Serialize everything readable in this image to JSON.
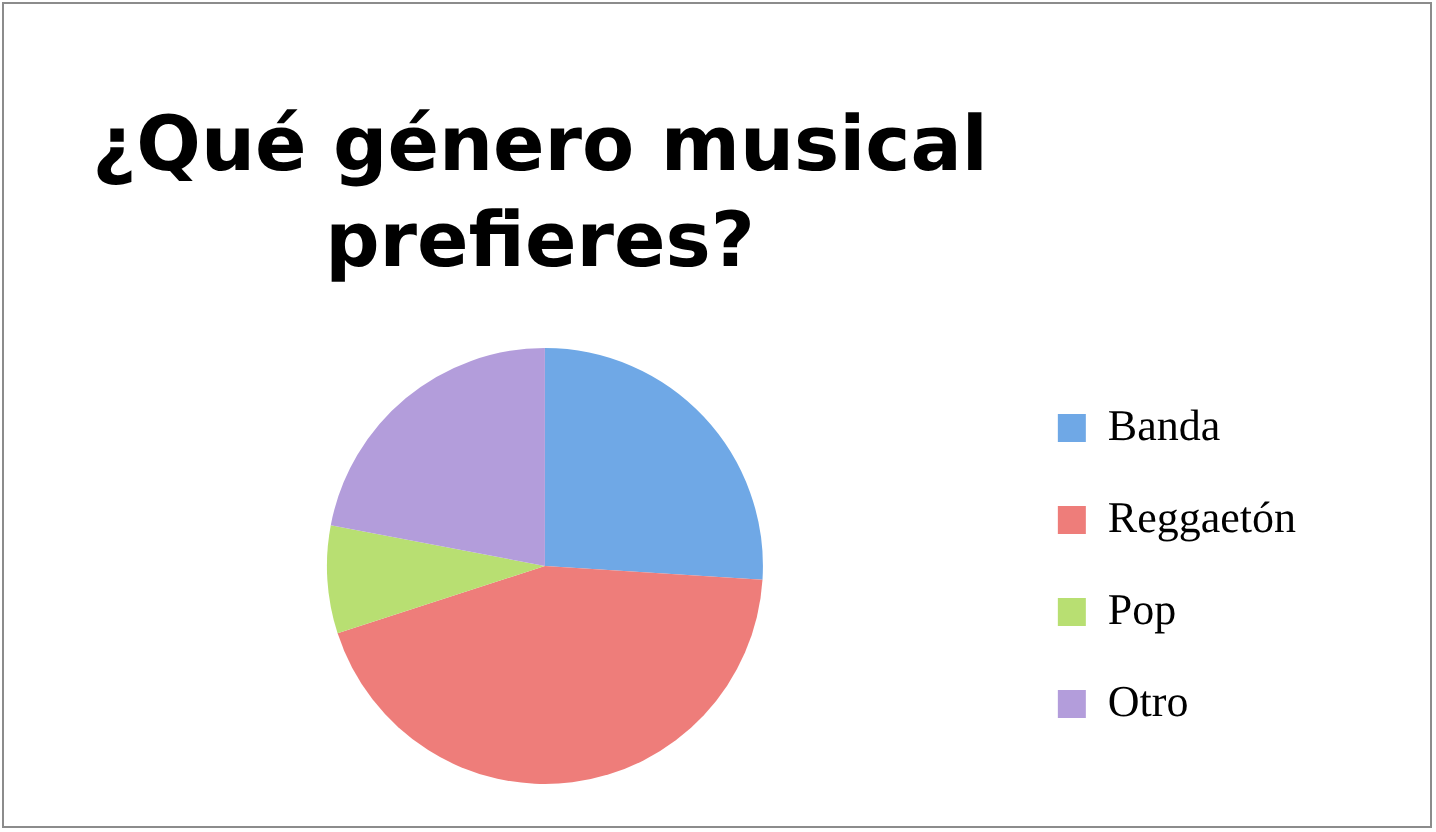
{
  "chart_data": {
    "type": "pie",
    "title": "¿Qué género musical prefieres?",
    "categories": [
      "Banda",
      "Reggaetón",
      "Pop",
      "Otro"
    ],
    "values": [
      26,
      44,
      8,
      22
    ],
    "colors": [
      "#6fa8e6",
      "#ee7d7a",
      "#b8df72",
      "#b39ddb"
    ],
    "legend": "right"
  }
}
